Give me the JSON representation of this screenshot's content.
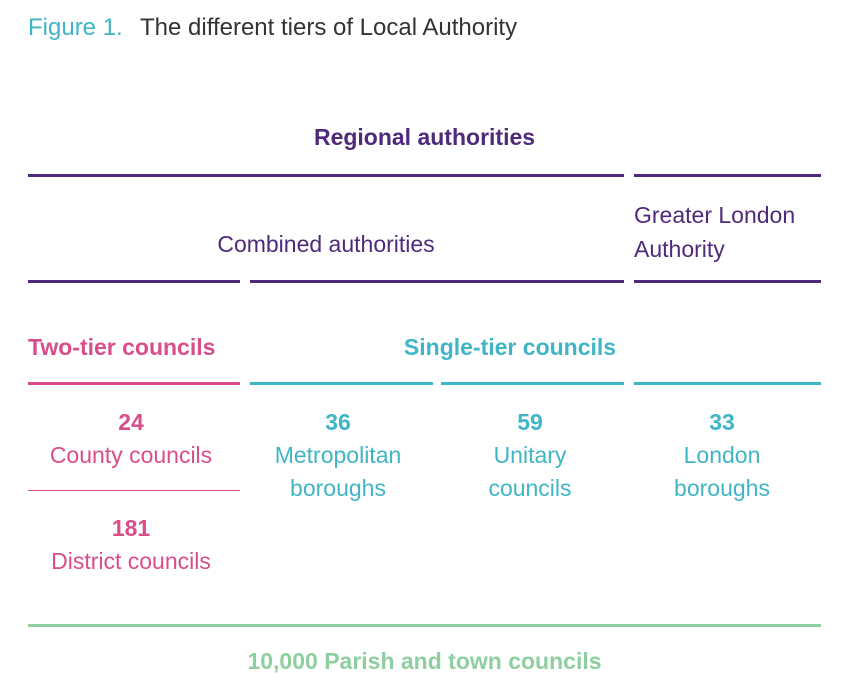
{
  "figure": {
    "label": "Figure 1.",
    "title": "The different tiers of Local Authority"
  },
  "tiers": {
    "regional": "Regional authorities",
    "combined": "Combined authorities",
    "greater_london": "Greater London Authority",
    "two_tier": "Two-tier councils",
    "single_tier": "Single-tier councils",
    "parish": "10,000 Parish and town councils"
  },
  "councils": {
    "county": {
      "count": "24",
      "label": "County councils"
    },
    "district": {
      "count": "181",
      "label": "District councils"
    },
    "metropolitan": {
      "count": "36",
      "label": "Metropolitan boroughs"
    },
    "unitary": {
      "count": "59",
      "label": "Unitary councils"
    },
    "london": {
      "count": "33",
      "label": "London boroughs"
    }
  },
  "colors": {
    "purple": "#4f2a7a",
    "pink": "#d94d8b",
    "teal": "#3fb5c5",
    "green": "#8fcf9f"
  }
}
